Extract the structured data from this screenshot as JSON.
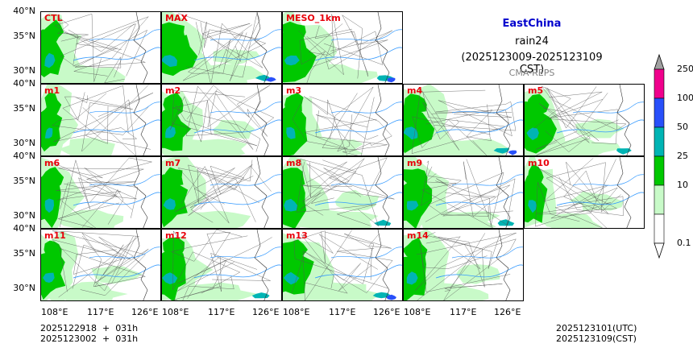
{
  "title": {
    "region": "EastChina",
    "variable": "rain24",
    "period": "(2025123009-2025123109 CST)",
    "source": "CMA-REPS"
  },
  "colors": {
    "region_title": "#0000cd",
    "source": "#808080",
    "panel_label": "#e8000b",
    "river": "#3399ff",
    "border": "#555555"
  },
  "panels": [
    {
      "label": "CTL"
    },
    {
      "label": "MAX"
    },
    {
      "label": "MESO_1km"
    },
    {
      "label": "m1"
    },
    {
      "label": "m2"
    },
    {
      "label": "m3"
    },
    {
      "label": "m4"
    },
    {
      "label": "m5"
    },
    {
      "label": "m6"
    },
    {
      "label": "m7"
    },
    {
      "label": "m8"
    },
    {
      "label": "m9"
    },
    {
      "label": "m10"
    },
    {
      "label": "m11"
    },
    {
      "label": "m12"
    },
    {
      "label": "m13"
    },
    {
      "label": "m14"
    }
  ],
  "axes": {
    "lat_labels": [
      "40°N",
      "35°N",
      "30°N"
    ],
    "lon_labels": [
      "108°E",
      "117°E",
      "126°E"
    ]
  },
  "colorbar": {
    "levels": [
      "0.1",
      "10",
      "25",
      "50",
      "100",
      "250"
    ],
    "colors": [
      "#c8fac8",
      "#00c800",
      "#00b4b4",
      "#2850fa",
      "#f0008c"
    ],
    "under_color": "#ffffff",
    "over_color": "#a0a0a0"
  },
  "footer": {
    "init_utc": "2025122918  +  031h",
    "init_cst": "2025123002  +  031h",
    "valid_utc": "2025123101(UTC)",
    "valid_cst": "2025123109(CST)"
  }
}
